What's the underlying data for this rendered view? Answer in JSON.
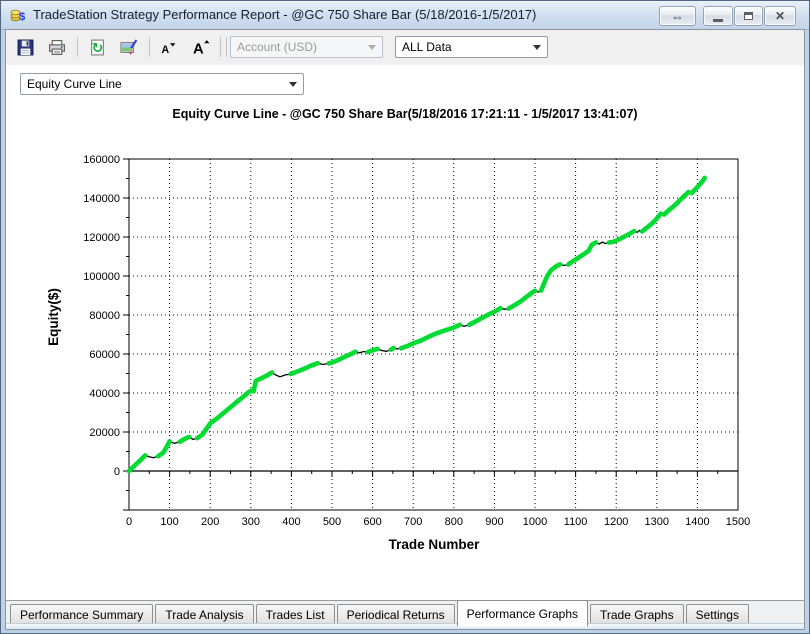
{
  "window": {
    "title": "TradeStation Strategy Performance Report - @GC 750 Share Bar (5/18/2016-1/5/2017)",
    "app_icon": "coins-dollar-icon",
    "controls": {
      "resize_glyph": "⇔",
      "minimize_name": "minimize",
      "restore_name": "restore",
      "close_glyph": "✕"
    }
  },
  "toolbar": {
    "icons": [
      "save-icon",
      "print-icon",
      "refresh-icon",
      "edit-image-icon",
      "font-decrease-icon",
      "font-increase-icon"
    ],
    "account_combo": {
      "value": "Account (USD)",
      "disabled": true
    },
    "data_combo": {
      "value": "ALL Data",
      "disabled": false
    }
  },
  "graph_selector": {
    "value": "Equity Curve Line"
  },
  "chart_data": {
    "type": "line",
    "title": "Equity Curve Line - @GC 750 Share Bar(5/18/2016 17:21:11 - 1/5/2017 13:41:07)",
    "xlabel": "Trade Number",
    "ylabel": "Equity($)",
    "xlim": [
      0,
      1500
    ],
    "ylim": [
      -20000,
      160000
    ],
    "x_ticks": [
      0,
      100,
      200,
      300,
      400,
      500,
      600,
      700,
      800,
      900,
      1000,
      1100,
      1200,
      1300,
      1400,
      1500
    ],
    "y_ticks": [
      0,
      20000,
      40000,
      60000,
      80000,
      100000,
      120000,
      140000,
      160000
    ],
    "grid": "dotted-both-axes",
    "legend": "none",
    "series": [
      {
        "name": "Equity",
        "color_up": "#00DC32",
        "color_down": "#000000",
        "note": "points are [tradeNumber, equityDollars, segmentColor g=green-winning k=black-drawdown]",
        "points": [
          [
            0,
            0,
            "g"
          ],
          [
            10,
            2000,
            "g"
          ],
          [
            25,
            5000,
            "g"
          ],
          [
            40,
            8000,
            "g"
          ],
          [
            50,
            7300,
            "k"
          ],
          [
            60,
            6800,
            "k"
          ],
          [
            72,
            7600,
            "k"
          ],
          [
            85,
            9500,
            "g"
          ],
          [
            100,
            15200,
            "g"
          ],
          [
            112,
            14200,
            "k"
          ],
          [
            125,
            15000,
            "k"
          ],
          [
            138,
            16500,
            "g"
          ],
          [
            148,
            17500,
            "g"
          ],
          [
            158,
            16200,
            "k"
          ],
          [
            168,
            16800,
            "k"
          ],
          [
            180,
            18500,
            "g"
          ],
          [
            200,
            24400,
            "g"
          ],
          [
            220,
            27500,
            "g"
          ],
          [
            240,
            31000,
            "g"
          ],
          [
            260,
            34500,
            "g"
          ],
          [
            278,
            37500,
            "g"
          ],
          [
            295,
            40500,
            "g"
          ],
          [
            302,
            41300,
            "g"
          ],
          [
            307,
            40800,
            "k"
          ],
          [
            312,
            46200,
            "g"
          ],
          [
            325,
            47500,
            "g"
          ],
          [
            340,
            49000,
            "g"
          ],
          [
            352,
            50500,
            "g"
          ],
          [
            362,
            49200,
            "k"
          ],
          [
            372,
            48300,
            "k"
          ],
          [
            385,
            49300,
            "k"
          ],
          [
            398,
            49700,
            "k"
          ],
          [
            412,
            50800,
            "g"
          ],
          [
            430,
            52300,
            "g"
          ],
          [
            448,
            54000,
            "g"
          ],
          [
            465,
            55300,
            "g"
          ],
          [
            478,
            54600,
            "k"
          ],
          [
            492,
            55200,
            "k"
          ],
          [
            505,
            56000,
            "g"
          ],
          [
            520,
            57400,
            "g"
          ],
          [
            535,
            58900,
            "g"
          ],
          [
            550,
            60300,
            "g"
          ],
          [
            558,
            61200,
            "g"
          ],
          [
            568,
            60600,
            "k"
          ],
          [
            578,
            61300,
            "k"
          ],
          [
            588,
            61000,
            "k"
          ],
          [
            600,
            61900,
            "g"
          ],
          [
            612,
            62600,
            "g"
          ],
          [
            622,
            61800,
            "k"
          ],
          [
            634,
            61400,
            "k"
          ],
          [
            645,
            62200,
            "k"
          ],
          [
            652,
            63100,
            "g"
          ],
          [
            660,
            62600,
            "k"
          ],
          [
            670,
            62900,
            "k"
          ],
          [
            685,
            64000,
            "g"
          ],
          [
            700,
            65500,
            "g"
          ],
          [
            720,
            67000,
            "g"
          ],
          [
            740,
            69000,
            "g"
          ],
          [
            760,
            70800,
            "g"
          ],
          [
            780,
            72200,
            "g"
          ],
          [
            800,
            73600,
            "g"
          ],
          [
            815,
            75000,
            "g"
          ],
          [
            825,
            74200,
            "k"
          ],
          [
            838,
            75000,
            "k"
          ],
          [
            852,
            76500,
            "g"
          ],
          [
            870,
            78500,
            "g"
          ],
          [
            885,
            80200,
            "g"
          ],
          [
            900,
            81700,
            "g"
          ],
          [
            915,
            83500,
            "g"
          ],
          [
            925,
            82900,
            "k"
          ],
          [
            935,
            83300,
            "k"
          ],
          [
            948,
            84800,
            "g"
          ],
          [
            965,
            87000,
            "g"
          ],
          [
            980,
            89500,
            "g"
          ],
          [
            995,
            91800,
            "g"
          ],
          [
            1000,
            92400,
            "g"
          ],
          [
            1008,
            91800,
            "k"
          ],
          [
            1015,
            92500,
            "k"
          ],
          [
            1022,
            96000,
            "g"
          ],
          [
            1030,
            100000,
            "g"
          ],
          [
            1040,
            103000,
            "g"
          ],
          [
            1052,
            105000,
            "g"
          ],
          [
            1062,
            106000,
            "g"
          ],
          [
            1072,
            105400,
            "k"
          ],
          [
            1082,
            105900,
            "k"
          ],
          [
            1095,
            107800,
            "g"
          ],
          [
            1108,
            109500,
            "g"
          ],
          [
            1120,
            111200,
            "g"
          ],
          [
            1132,
            113000,
            "g"
          ],
          [
            1140,
            116000,
            "g"
          ],
          [
            1150,
            117200,
            "g"
          ],
          [
            1158,
            116400,
            "k"
          ],
          [
            1166,
            117400,
            "k"
          ],
          [
            1174,
            116600,
            "k"
          ],
          [
            1182,
            117200,
            "k"
          ],
          [
            1192,
            117500,
            "g"
          ],
          [
            1205,
            118500,
            "g"
          ],
          [
            1218,
            120000,
            "g"
          ],
          [
            1232,
            121500,
            "g"
          ],
          [
            1244,
            123000,
            "g"
          ],
          [
            1252,
            122400,
            "k"
          ],
          [
            1258,
            123400,
            "k"
          ],
          [
            1264,
            122800,
            "k"
          ],
          [
            1274,
            124500,
            "g"
          ],
          [
            1286,
            126500,
            "g"
          ],
          [
            1298,
            129000,
            "g"
          ],
          [
            1310,
            132000,
            "g"
          ],
          [
            1318,
            131500,
            "k"
          ],
          [
            1328,
            133500,
            "g"
          ],
          [
            1340,
            135500,
            "g"
          ],
          [
            1352,
            137800,
            "g"
          ],
          [
            1365,
            140500,
            "g"
          ],
          [
            1378,
            143000,
            "g"
          ],
          [
            1386,
            142500,
            "k"
          ],
          [
            1395,
            144500,
            "g"
          ],
          [
            1404,
            146500,
            "g"
          ],
          [
            1412,
            148500,
            "g"
          ],
          [
            1418,
            150300,
            "g"
          ]
        ]
      }
    ]
  },
  "tabs": {
    "active_index": 4,
    "items": [
      "Performance Summary",
      "Trade Analysis",
      "Trades List",
      "Periodical Returns",
      "Performance Graphs",
      "Trade Graphs",
      "Settings"
    ]
  }
}
